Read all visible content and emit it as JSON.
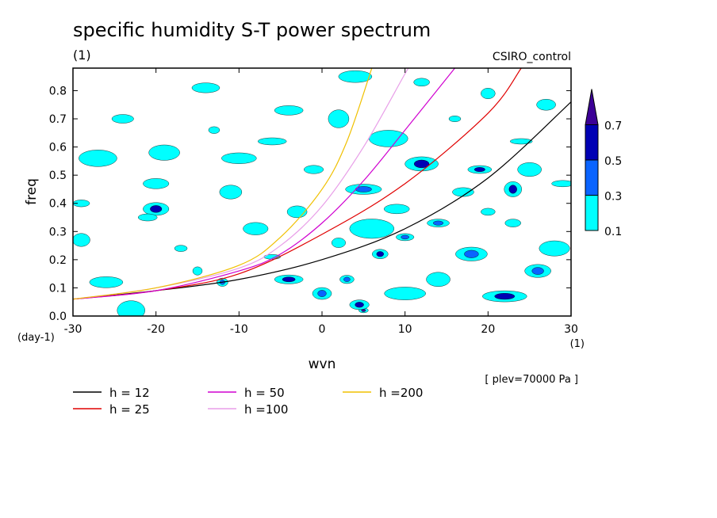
{
  "chart_data": {
    "type": "heatmap",
    "title": "specific humidity S-T power spectrum",
    "subtitle_units": "(1)",
    "model_label": "CSIRO_control",
    "xlabel": "wvn",
    "x_units": "(1)",
    "ylabel": "freq",
    "y_units": "(day-1)",
    "xlim": [
      -30,
      30
    ],
    "ylim": [
      0,
      0.88
    ],
    "x_ticks": [
      -30,
      -20,
      -10,
      0,
      10,
      20,
      30
    ],
    "y_ticks": [
      0.0,
      0.1,
      0.2,
      0.3,
      0.4,
      0.5,
      0.6,
      0.7,
      0.8
    ],
    "x_tick_labels": [
      "-30",
      "-20",
      "-10",
      "0",
      "10",
      "20",
      "30"
    ],
    "y_tick_labels": [
      "0.0",
      "0.1",
      "0.2",
      "0.3",
      "0.4",
      "0.5",
      "0.6",
      "0.7",
      "0.8"
    ],
    "level_note": "[ plev=70000 Pa ]",
    "colorbar": {
      "levels": [
        0.1,
        0.3,
        0.5,
        0.7
      ],
      "labels": [
        "0.1",
        "0.3",
        "0.5",
        "0.7"
      ],
      "colors": [
        "#00ffff",
        "#0a64ff",
        "#0000b4",
        "#3c0096"
      ]
    },
    "patches": [
      {
        "x": 5,
        "y": 0.02,
        "level": 0.7
      },
      {
        "x": 4.5,
        "y": 0.04,
        "level": 0.5
      },
      {
        "x": 7,
        "y": 0.22,
        "level": 0.5
      },
      {
        "x": -4,
        "y": 0.13,
        "level": 0.5
      },
      {
        "x": 19,
        "y": 0.52,
        "level": 0.5
      },
      {
        "x": 23,
        "y": 0.45,
        "level": 0.5
      },
      {
        "x": 12,
        "y": 0.54,
        "level": 0.5
      },
      {
        "x": -20,
        "y": 0.38,
        "level": 0.5
      },
      {
        "x": 22,
        "y": 0.07,
        "level": 0.5
      },
      {
        "x": 3,
        "y": 0.13,
        "level": 0.3
      },
      {
        "x": -12,
        "y": 0.12,
        "level": 0.3
      },
      {
        "x": 14,
        "y": 0.33,
        "level": 0.3
      },
      {
        "x": 10,
        "y": 0.28,
        "level": 0.3
      },
      {
        "x": 18,
        "y": 0.22,
        "level": 0.3
      },
      {
        "x": 26,
        "y": 0.16,
        "level": 0.3
      },
      {
        "x": 0,
        "y": 0.08,
        "level": 0.3
      },
      {
        "x": 5,
        "y": 0.45,
        "level": 0.3
      },
      {
        "x": -23,
        "y": 0.02,
        "level": 0.1
      },
      {
        "x": -21,
        "y": 0.35,
        "level": 0.1
      },
      {
        "x": -29,
        "y": 0.4,
        "level": 0.1
      },
      {
        "x": -17,
        "y": 0.24,
        "level": 0.1
      },
      {
        "x": -8,
        "y": 0.31,
        "level": 0.1
      },
      {
        "x": -3,
        "y": 0.37,
        "level": 0.1
      },
      {
        "x": -10,
        "y": 0.56,
        "level": 0.1
      },
      {
        "x": -4,
        "y": 0.73,
        "level": 0.1
      },
      {
        "x": 2,
        "y": 0.7,
        "level": 0.1
      },
      {
        "x": 8,
        "y": 0.63,
        "level": 0.1
      },
      {
        "x": 16,
        "y": 0.7,
        "level": 0.1
      },
      {
        "x": 24,
        "y": 0.62,
        "level": 0.1
      },
      {
        "x": 27,
        "y": 0.75,
        "level": 0.1
      },
      {
        "x": 20,
        "y": 0.79,
        "level": 0.1
      },
      {
        "x": -14,
        "y": 0.81,
        "level": 0.1
      },
      {
        "x": -24,
        "y": 0.7,
        "level": 0.1
      },
      {
        "x": -27,
        "y": 0.56,
        "level": 0.1
      },
      {
        "x": -19,
        "y": 0.58,
        "level": 0.1
      },
      {
        "x": -11,
        "y": 0.44,
        "level": 0.1
      },
      {
        "x": -6,
        "y": 0.21,
        "level": 0.1
      },
      {
        "x": 2,
        "y": 0.26,
        "level": 0.1
      },
      {
        "x": 9,
        "y": 0.38,
        "level": 0.1
      },
      {
        "x": 17,
        "y": 0.44,
        "level": 0.1
      },
      {
        "x": 23,
        "y": 0.33,
        "level": 0.1
      },
      {
        "x": 28,
        "y": 0.24,
        "level": 0.1
      },
      {
        "x": 14,
        "y": 0.13,
        "level": 0.1
      },
      {
        "x": 10,
        "y": 0.08,
        "level": 0.1
      },
      {
        "x": -26,
        "y": 0.12,
        "level": 0.1
      },
      {
        "x": -15,
        "y": 0.16,
        "level": 0.1
      },
      {
        "x": -1,
        "y": 0.52,
        "level": 0.1
      },
      {
        "x": 12,
        "y": 0.83,
        "level": 0.1
      },
      {
        "x": -6,
        "y": 0.62,
        "level": 0.1
      },
      {
        "x": 25,
        "y": 0.52,
        "level": 0.1
      },
      {
        "x": -29,
        "y": 0.27,
        "level": 0.1
      },
      {
        "x": 4,
        "y": 0.85,
        "level": 0.1
      },
      {
        "x": -20,
        "y": 0.47,
        "level": 0.1
      },
      {
        "x": 6,
        "y": 0.31,
        "level": 0.1
      },
      {
        "x": 20,
        "y": 0.37,
        "level": 0.1
      },
      {
        "x": -13,
        "y": 0.66,
        "level": 0.1
      },
      {
        "x": 29,
        "y": 0.47,
        "level": 0.1
      }
    ],
    "series": [
      {
        "name": "h = 12",
        "label": "h = 12",
        "h": 12,
        "color": "#000000",
        "x": [
          -30,
          -20,
          -10,
          0,
          10,
          20,
          30
        ],
        "y": [
          0.06,
          0.09,
          0.13,
          0.2,
          0.31,
          0.49,
          0.76
        ]
      },
      {
        "name": "h = 25",
        "label": "h = 25",
        "h": 25,
        "color": "#e00000",
        "x": [
          -30,
          -20,
          -10,
          0,
          10,
          20,
          24
        ],
        "y": [
          0.06,
          0.09,
          0.15,
          0.29,
          0.47,
          0.72,
          0.88
        ]
      },
      {
        "name": "h = 50",
        "label": "h = 50",
        "h": 50,
        "color": "#d000d0",
        "x": [
          -30,
          -20,
          -10,
          -5,
          0,
          5,
          10,
          16
        ],
        "y": [
          0.06,
          0.09,
          0.16,
          0.22,
          0.33,
          0.48,
          0.66,
          0.88
        ]
      },
      {
        "name": "h =100",
        "label": "h =100",
        "h": 100,
        "color": "#e89ee8",
        "x": [
          -30,
          -20,
          -10,
          -5,
          0,
          5,
          10,
          10.5
        ],
        "y": [
          0.06,
          0.1,
          0.17,
          0.25,
          0.39,
          0.6,
          0.86,
          0.88
        ]
      },
      {
        "name": "h =200",
        "label": "h =200",
        "h": 200,
        "color": "#f0c000",
        "x": [
          -30,
          -20,
          -10,
          -5,
          0,
          3,
          6
        ],
        "y": [
          0.06,
          0.1,
          0.18,
          0.28,
          0.45,
          0.62,
          0.88
        ]
      }
    ]
  }
}
